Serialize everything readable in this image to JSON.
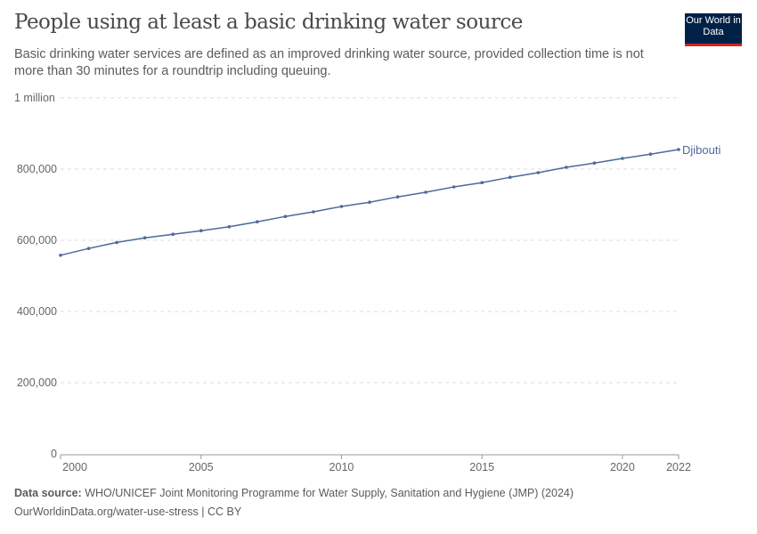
{
  "header": {
    "title": "People using at least a basic drinking water source",
    "subtitle": "Basic drinking water services are defined as an improved drinking water source, provided collection time is not more than 30 minutes for a roundtrip including queuing.",
    "logo": "Our World in Data"
  },
  "footer": {
    "source_label": "Data source:",
    "source": "WHO/UNICEF Joint Monitoring Programme for Water Supply, Sanitation and Hygiene (JMP) (2024)",
    "url": "OurWorldinData.org/water-use-stress | CC BY"
  },
  "chart_data": {
    "type": "line",
    "title": "People using at least a basic drinking water source",
    "ylim": [
      0,
      1000000
    ],
    "xlim": [
      2000,
      2022
    ],
    "grid": "horizontal dashed",
    "yticks": [
      {
        "v": 0,
        "label": "0"
      },
      {
        "v": 200000,
        "label": "200,000"
      },
      {
        "v": 400000,
        "label": "400,000"
      },
      {
        "v": 600000,
        "label": "600,000"
      },
      {
        "v": 800000,
        "label": "800,000"
      },
      {
        "v": 1000000,
        "label": "1 million"
      }
    ],
    "xticks": [
      {
        "v": 2000,
        "label": "2000"
      },
      {
        "v": 2005,
        "label": "2005"
      },
      {
        "v": 2010,
        "label": "2010"
      },
      {
        "v": 2015,
        "label": "2015"
      },
      {
        "v": 2020,
        "label": "2020"
      },
      {
        "v": 2022,
        "label": "2022"
      }
    ],
    "series": [
      {
        "name": "Djibouti",
        "color": "#4c6a9c",
        "x": [
          2000,
          2001,
          2002,
          2003,
          2004,
          2005,
          2006,
          2007,
          2008,
          2009,
          2010,
          2011,
          2012,
          2013,
          2014,
          2015,
          2016,
          2017,
          2018,
          2019,
          2020,
          2021,
          2022
        ],
        "values": [
          558000,
          577000,
          594000,
          607000,
          617000,
          627000,
          638000,
          652000,
          667000,
          680000,
          695000,
          707000,
          722000,
          735000,
          750000,
          762000,
          777000,
          790000,
          805000,
          817000,
          830000,
          842000,
          855000
        ]
      }
    ]
  }
}
